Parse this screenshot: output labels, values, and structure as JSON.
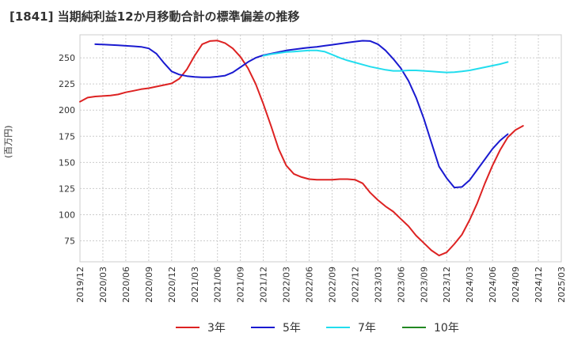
{
  "title": "[1841]  当期純利益12か月移動合計の標準偏差の推移",
  "chart_data": {
    "type": "line",
    "ylabel": "(百万円)",
    "ylim": [
      55,
      272
    ],
    "y_ticks": [
      75,
      100,
      125,
      150,
      175,
      200,
      225,
      250
    ],
    "x_start": "2019/12",
    "x_end": "2025/03",
    "x_ticks": [
      "2019/12",
      "2020/03",
      "2020/06",
      "2020/09",
      "2020/12",
      "2021/03",
      "2021/06",
      "2021/09",
      "2021/12",
      "2022/03",
      "2022/06",
      "2022/09",
      "2022/12",
      "2023/03",
      "2023/06",
      "2023/09",
      "2023/12",
      "2024/03",
      "2024/06",
      "2024/09",
      "2024/12",
      "2025/03"
    ],
    "series": [
      {
        "name": "3年",
        "color": "#dd2222",
        "x": [
          0,
          1,
          2,
          3,
          4,
          5,
          6,
          7,
          8,
          9,
          10,
          11,
          12,
          13,
          14,
          15,
          16,
          17,
          18,
          19,
          20,
          21,
          22,
          23,
          24,
          25,
          26,
          27,
          28,
          29,
          30,
          31,
          32,
          33,
          34,
          35,
          36,
          37,
          38,
          39,
          40,
          41,
          42,
          43,
          44,
          45,
          46,
          47,
          48,
          49,
          50,
          51,
          52,
          53,
          54,
          55,
          56,
          57,
          58,
          59,
          60,
          61
        ],
        "values": [
          208,
          212,
          213,
          213.5,
          214,
          215,
          217,
          218.5,
          220,
          221,
          222.5,
          224,
          225.5,
          230,
          239,
          252,
          263,
          266,
          266.5,
          264,
          259,
          251,
          240,
          225,
          206,
          185,
          163,
          147,
          139,
          136,
          134,
          133.5,
          133.5,
          133.5,
          134,
          134,
          133.5,
          130,
          121,
          114,
          108,
          103,
          96,
          89,
          80,
          73,
          66,
          61,
          64,
          72,
          81,
          95,
          111,
          130,
          147,
          162,
          174,
          181,
          185,
          null,
          null,
          null
        ]
      },
      {
        "name": "5年",
        "color": "#1a1ad0",
        "x": [
          0,
          1,
          2,
          3,
          4,
          5,
          6,
          7,
          8,
          9,
          10,
          11,
          12,
          13,
          14,
          15,
          16,
          17,
          18,
          19,
          20,
          21,
          22,
          23,
          24,
          25,
          26,
          27,
          28,
          29,
          30,
          31,
          32,
          33,
          34,
          35,
          36,
          37,
          38,
          39,
          40,
          41,
          42,
          43,
          44,
          45,
          46,
          47,
          48,
          49,
          50,
          51,
          52,
          53,
          54,
          55,
          56,
          57,
          58,
          59,
          60,
          61
        ],
        "values": [
          null,
          null,
          263,
          262.7,
          262.3,
          262,
          261.5,
          261,
          260.5,
          259,
          254,
          245,
          237,
          234,
          232.5,
          231.8,
          231.3,
          231.3,
          232,
          233,
          236,
          241,
          246,
          250,
          252.5,
          254,
          255.5,
          257,
          258,
          259,
          259.8,
          260.5,
          261.5,
          262.5,
          263.5,
          264.5,
          265.5,
          266.3,
          266,
          263,
          257,
          249,
          240,
          228,
          212,
          192,
          169,
          146,
          135,
          126,
          126.5,
          133,
          143,
          153,
          163,
          171,
          177,
          null,
          null,
          null,
          null,
          null
        ]
      },
      {
        "name": "7年",
        "color": "#22ddee",
        "x": [
          0,
          1,
          2,
          3,
          4,
          5,
          6,
          7,
          8,
          9,
          10,
          11,
          12,
          13,
          14,
          15,
          16,
          17,
          18,
          19,
          20,
          21,
          22,
          23,
          24,
          25,
          26,
          27,
          28,
          29,
          30,
          31,
          32,
          33,
          34,
          35,
          36,
          37,
          38,
          39,
          40,
          41,
          42,
          43,
          44,
          45,
          46,
          47,
          48,
          49,
          50,
          51,
          52,
          53,
          54,
          55,
          56,
          57,
          58,
          59,
          60,
          61
        ],
        "values": [
          null,
          null,
          null,
          null,
          null,
          null,
          null,
          null,
          null,
          null,
          null,
          null,
          null,
          null,
          null,
          null,
          null,
          null,
          null,
          null,
          null,
          null,
          null,
          null,
          252,
          253.5,
          254.5,
          255.5,
          256,
          256.5,
          257,
          257,
          256,
          253,
          250,
          247.5,
          245.5,
          243.5,
          241.5,
          240,
          238.5,
          237.5,
          237.5,
          238,
          238,
          237.5,
          237,
          236.5,
          236,
          236.3,
          237,
          238,
          239.5,
          241,
          242.5,
          244,
          246,
          null,
          null,
          null,
          null,
          null
        ]
      },
      {
        "name": "10年",
        "color": "#228822",
        "x": [],
        "values": []
      }
    ]
  }
}
